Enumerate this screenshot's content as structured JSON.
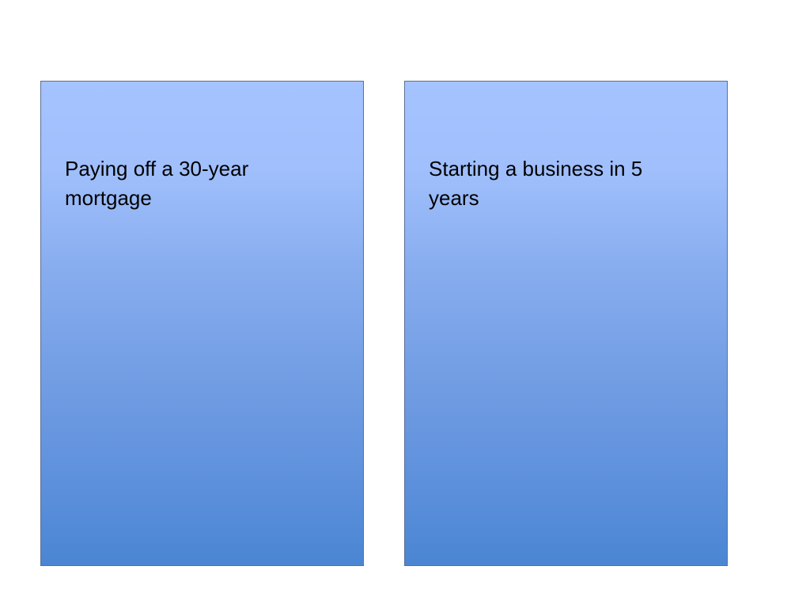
{
  "cards": [
    {
      "text": "Paying off a 30-year mortgage"
    },
    {
      "text": "Starting a business in 5 years"
    }
  ],
  "colors": {
    "gradient_top": "#a5c3ff",
    "gradient_bottom": "#4a86d3",
    "border": "#5a6f99"
  }
}
